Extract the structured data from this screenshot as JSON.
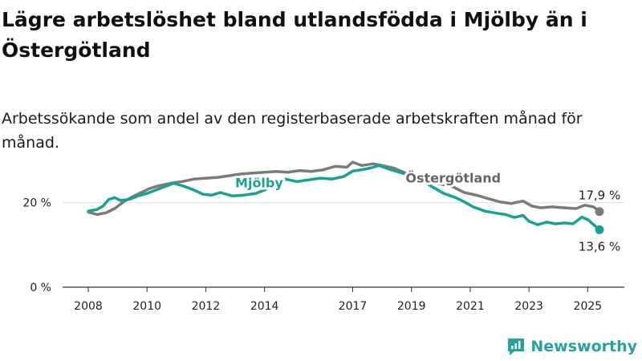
{
  "title": "Lägre arbetslöshet bland utlandsfödda i Mjölby än i Östergötland",
  "subtitle": "Arbetssökande som andel av den registerbaserade arbetskraften månad för månad.",
  "brand": {
    "name": "Newsworthy",
    "icon": "newsworthy-logo-icon",
    "color": "#26a2a0"
  },
  "chart_data": {
    "type": "line",
    "y_ticks": [
      "0 %",
      "20 %"
    ],
    "y_tick_values": [
      0,
      20
    ],
    "ylim": [
      0,
      30
    ],
    "x_ticks": [
      "2008",
      "2010",
      "2012",
      "2014",
      "2017",
      "2019",
      "2021",
      "2023",
      "2025"
    ],
    "x_tick_values": [
      2008,
      2010,
      2012,
      2014,
      2017,
      2019,
      2021,
      2023,
      2025
    ],
    "xlim": [
      2008,
      2025.4
    ],
    "grid": "horizontal",
    "series": [
      {
        "name": "Mjölby",
        "color": "#16a394",
        "end_label": "13,6 %",
        "points": [
          [
            2008.0,
            18.0
          ],
          [
            2008.3,
            18.4
          ],
          [
            2008.5,
            19.2
          ],
          [
            2008.7,
            20.8
          ],
          [
            2008.9,
            21.2
          ],
          [
            2009.1,
            20.5
          ],
          [
            2009.4,
            20.8
          ],
          [
            2009.7,
            21.6
          ],
          [
            2010.0,
            22.2
          ],
          [
            2010.3,
            23.0
          ],
          [
            2010.6,
            23.8
          ],
          [
            2010.9,
            24.6
          ],
          [
            2011.1,
            24.2
          ],
          [
            2011.3,
            23.8
          ],
          [
            2011.6,
            23.0
          ],
          [
            2011.9,
            22.0
          ],
          [
            2012.2,
            21.8
          ],
          [
            2012.5,
            22.4
          ],
          [
            2012.9,
            21.6
          ],
          [
            2013.3,
            21.8
          ],
          [
            2013.7,
            22.2
          ],
          [
            2014.0,
            23.0
          ],
          [
            2014.3,
            24.0
          ],
          [
            2014.7,
            25.6
          ],
          [
            2015.1,
            25.0
          ],
          [
            2015.5,
            25.4
          ],
          [
            2015.9,
            25.8
          ],
          [
            2016.3,
            25.6
          ],
          [
            2016.7,
            26.2
          ],
          [
            2017.0,
            27.5
          ],
          [
            2017.3,
            27.8
          ],
          [
            2017.6,
            28.2
          ],
          [
            2017.9,
            28.8
          ],
          [
            2018.3,
            27.8
          ],
          [
            2018.7,
            27.0
          ],
          [
            2019.0,
            26.4
          ],
          [
            2019.3,
            25.6
          ],
          [
            2019.7,
            23.8
          ],
          [
            2020.1,
            22.2
          ],
          [
            2020.5,
            21.2
          ],
          [
            2020.8,
            20.2
          ],
          [
            2021.1,
            19.0
          ],
          [
            2021.5,
            18.0
          ],
          [
            2021.9,
            17.5
          ],
          [
            2022.2,
            17.2
          ],
          [
            2022.5,
            16.5
          ],
          [
            2022.8,
            17.0
          ],
          [
            2023.0,
            15.6
          ],
          [
            2023.3,
            14.8
          ],
          [
            2023.6,
            15.4
          ],
          [
            2023.9,
            15.0
          ],
          [
            2024.2,
            15.2
          ],
          [
            2024.5,
            15.0
          ],
          [
            2024.8,
            16.6
          ],
          [
            2025.0,
            16.0
          ],
          [
            2025.2,
            14.8
          ],
          [
            2025.4,
            13.6
          ]
        ]
      },
      {
        "name": "Östergötland",
        "color": "#7b7b7b",
        "end_label": "17,9 %",
        "points": [
          [
            2008.0,
            17.8
          ],
          [
            2008.3,
            17.2
          ],
          [
            2008.6,
            17.6
          ],
          [
            2008.9,
            18.6
          ],
          [
            2009.2,
            20.2
          ],
          [
            2009.5,
            21.4
          ],
          [
            2009.8,
            22.4
          ],
          [
            2010.1,
            23.4
          ],
          [
            2010.4,
            24.0
          ],
          [
            2010.8,
            24.6
          ],
          [
            2011.2,
            25.0
          ],
          [
            2011.6,
            25.6
          ],
          [
            2012.0,
            25.8
          ],
          [
            2012.4,
            26.0
          ],
          [
            2012.8,
            26.4
          ],
          [
            2013.2,
            26.8
          ],
          [
            2013.6,
            27.0
          ],
          [
            2014.0,
            27.2
          ],
          [
            2014.4,
            27.4
          ],
          [
            2014.8,
            27.2
          ],
          [
            2015.2,
            27.6
          ],
          [
            2015.6,
            27.4
          ],
          [
            2016.0,
            27.8
          ],
          [
            2016.4,
            28.6
          ],
          [
            2016.8,
            28.4
          ],
          [
            2017.0,
            29.6
          ],
          [
            2017.3,
            28.8
          ],
          [
            2017.7,
            29.2
          ],
          [
            2018.0,
            28.8
          ],
          [
            2018.4,
            28.2
          ],
          [
            2018.8,
            27.0
          ],
          [
            2019.2,
            26.2
          ],
          [
            2019.6,
            25.2
          ],
          [
            2020.0,
            24.4
          ],
          [
            2020.4,
            23.8
          ],
          [
            2020.8,
            22.4
          ],
          [
            2021.2,
            21.8
          ],
          [
            2021.6,
            21.0
          ],
          [
            2022.0,
            20.2
          ],
          [
            2022.4,
            19.8
          ],
          [
            2022.8,
            20.4
          ],
          [
            2023.1,
            19.2
          ],
          [
            2023.4,
            18.8
          ],
          [
            2023.8,
            19.0
          ],
          [
            2024.2,
            18.8
          ],
          [
            2024.6,
            18.6
          ],
          [
            2024.9,
            19.4
          ],
          [
            2025.2,
            19.0
          ],
          [
            2025.4,
            17.9
          ]
        ]
      }
    ]
  }
}
